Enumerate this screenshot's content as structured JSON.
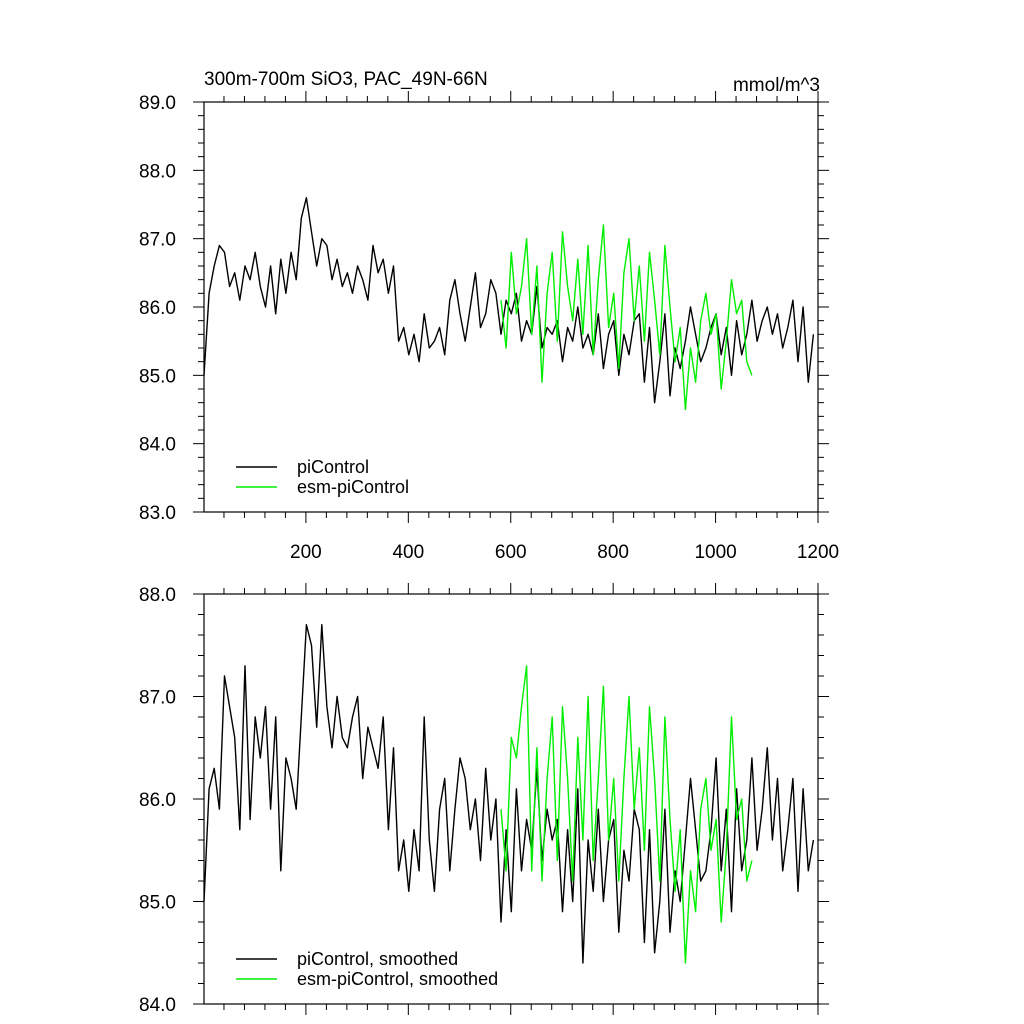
{
  "title_left": "300m-700m SiO3, PAC_49N-66N",
  "title_right": "mmol/m^3",
  "colors": {
    "piControl": "#000000",
    "esm_piControl": "#00ee00",
    "axis": "#000000"
  },
  "chart_data": [
    {
      "type": "line",
      "xlim": [
        1,
        1200
      ],
      "ylim": [
        83.0,
        89.0
      ],
      "y_ticks": [
        "83.0",
        "84.0",
        "85.0",
        "86.0",
        "87.0",
        "88.0",
        "89.0"
      ],
      "x_ticks": [
        "200",
        "400",
        "600",
        "800",
        "1000",
        "1200"
      ],
      "legend": [
        "piControl",
        "esm-piControl"
      ],
      "legend_position": "bottom-left",
      "series": [
        {
          "name": "piControl",
          "color": "#000000",
          "x_start": 1,
          "x_step": 10,
          "values": [
            85.0,
            86.2,
            86.6,
            86.9,
            86.8,
            86.3,
            86.5,
            86.1,
            86.6,
            86.4,
            86.8,
            86.3,
            86.0,
            86.6,
            85.9,
            86.7,
            86.2,
            86.8,
            86.4,
            87.3,
            87.6,
            87.1,
            86.6,
            87.0,
            86.9,
            86.4,
            86.7,
            86.3,
            86.5,
            86.2,
            86.6,
            86.4,
            86.1,
            86.9,
            86.5,
            86.7,
            86.2,
            86.6,
            85.5,
            85.7,
            85.3,
            85.6,
            85.2,
            85.9,
            85.4,
            85.5,
            85.7,
            85.3,
            86.1,
            86.4,
            85.9,
            85.5,
            86.0,
            86.5,
            85.7,
            85.9,
            86.4,
            86.2,
            85.6,
            86.1,
            85.9,
            86.2,
            85.5,
            85.8,
            85.6,
            86.3,
            85.4,
            85.7,
            85.6,
            85.8,
            85.2,
            85.7,
            85.5,
            86.0,
            85.4,
            85.6,
            85.3,
            85.9,
            85.1,
            85.6,
            85.8,
            85.0,
            85.6,
            85.3,
            85.8,
            85.9,
            84.9,
            85.7,
            84.6,
            85.2,
            85.9,
            84.7,
            85.4,
            85.1,
            85.5,
            86.0,
            85.6,
            85.2,
            85.4,
            85.7,
            85.9,
            85.3,
            85.7,
            85.0,
            85.8,
            85.3,
            85.6,
            86.1,
            85.5,
            85.8,
            86.0,
            85.6,
            85.9,
            85.4,
            85.7,
            86.1,
            85.2,
            86.0,
            84.9,
            85.6
          ]
        },
        {
          "name": "esm-piControl",
          "color": "#00ee00",
          "x_start": 581,
          "x_step": 10,
          "values": [
            86.1,
            85.4,
            86.8,
            85.9,
            86.3,
            87.0,
            85.6,
            86.6,
            84.9,
            86.2,
            86.8,
            85.5,
            87.1,
            86.3,
            85.8,
            86.7,
            85.6,
            86.9,
            85.3,
            86.4,
            87.2,
            85.7,
            86.2,
            85.1,
            86.5,
            87.0,
            85.8,
            86.6,
            85.5,
            86.8,
            86.1,
            85.3,
            86.9,
            86.0,
            85.2,
            85.7,
            84.5,
            85.4,
            84.9,
            85.8,
            86.2,
            85.6,
            85.9,
            84.8,
            85.5,
            86.4,
            85.9,
            86.1,
            85.2,
            85.0
          ]
        }
      ]
    },
    {
      "type": "line",
      "xlim": [
        1,
        1200
      ],
      "ylim": [
        84.0,
        88.0
      ],
      "y_ticks": [
        "84.0",
        "85.0",
        "86.0",
        "87.0",
        "88.0"
      ],
      "legend": [
        "piControl, smoothed",
        "esm-piControl, smoothed"
      ],
      "legend_position": "bottom-left",
      "series": [
        {
          "name": "piControl, smoothed",
          "color": "#000000",
          "x_start": 1,
          "x_step": 10,
          "values": [
            85.0,
            86.1,
            86.3,
            85.9,
            87.2,
            86.9,
            86.6,
            85.7,
            87.3,
            85.8,
            86.8,
            86.4,
            86.9,
            85.9,
            86.8,
            85.3,
            86.4,
            86.2,
            85.9,
            86.8,
            87.7,
            87.5,
            86.7,
            87.7,
            86.9,
            86.5,
            87.0,
            86.6,
            86.5,
            86.8,
            87.0,
            86.2,
            86.7,
            86.5,
            86.3,
            86.8,
            85.7,
            86.5,
            85.3,
            85.6,
            85.1,
            85.7,
            85.3,
            86.8,
            85.6,
            85.1,
            85.9,
            86.2,
            85.3,
            85.9,
            86.4,
            86.2,
            85.7,
            86.0,
            85.4,
            86.3,
            85.6,
            86.0,
            84.8,
            85.7,
            84.9,
            86.1,
            85.3,
            85.8,
            85.5,
            86.3,
            85.4,
            85.9,
            85.6,
            85.8,
            84.9,
            85.7,
            85.0,
            86.1,
            84.4,
            85.6,
            85.1,
            85.9,
            85.0,
            85.6,
            85.8,
            84.7,
            85.5,
            85.2,
            85.9,
            85.7,
            84.6,
            85.7,
            84.5,
            85.0,
            85.9,
            84.7,
            85.3,
            85.0,
            85.6,
            86.2,
            85.7,
            85.2,
            85.3,
            85.7,
            86.4,
            85.3,
            85.9,
            84.9,
            86.1,
            85.3,
            85.6,
            86.4,
            85.5,
            85.9,
            86.5,
            85.6,
            86.2,
            85.3,
            85.7,
            86.2,
            85.1,
            86.1,
            85.3,
            85.6
          ]
        },
        {
          "name": "esm-piControl, smoothed",
          "color": "#00ee00",
          "x_start": 581,
          "x_step": 10,
          "values": [
            85.9,
            85.3,
            86.6,
            86.4,
            86.9,
            87.3,
            85.3,
            86.5,
            85.2,
            86.2,
            86.8,
            85.4,
            86.9,
            86.2,
            85.2,
            86.6,
            85.6,
            87.0,
            85.4,
            86.2,
            87.1,
            85.6,
            86.2,
            85.2,
            86.2,
            87.0,
            85.9,
            86.5,
            85.5,
            86.9,
            86.2,
            85.2,
            86.8,
            85.8,
            85.1,
            85.7,
            84.4,
            85.3,
            84.9,
            85.9,
            86.2,
            85.5,
            85.8,
            84.8,
            85.5,
            86.8,
            85.8,
            86.0,
            85.2,
            85.4
          ]
        }
      ]
    }
  ]
}
